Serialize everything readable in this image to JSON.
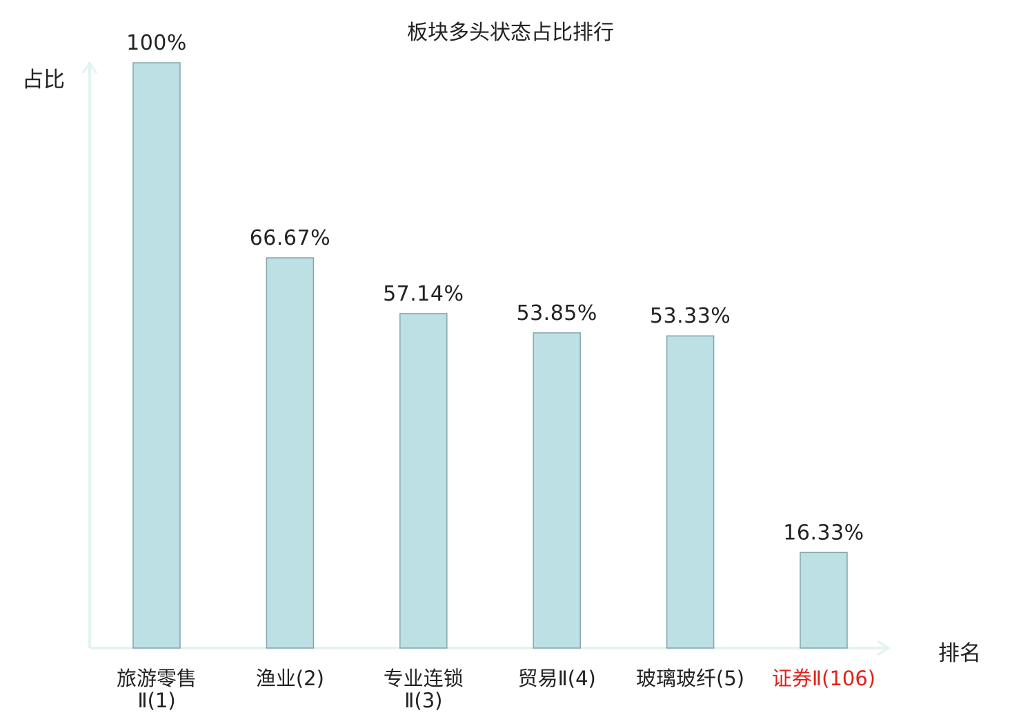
{
  "chart_data": {
    "type": "bar",
    "title": "板块多头状态占比排行",
    "ylabel": "占比",
    "xlabel": "排名",
    "ylim": [
      0,
      100
    ],
    "grid": false,
    "value_suffix": "%",
    "categories": [
      [
        "旅游零售",
        "Ⅱ(1)"
      ],
      [
        "渔业(2)"
      ],
      [
        "专业连锁",
        "Ⅱ(3)"
      ],
      [
        "贸易Ⅱ(4)"
      ],
      [
        "玻璃玻纤(5)"
      ],
      [
        "证券Ⅱ(106)"
      ]
    ],
    "values": [
      100,
      66.67,
      57.14,
      53.85,
      53.33,
      16.33
    ],
    "value_labels": [
      "100%",
      "66.67%",
      "57.14%",
      "53.85%",
      "53.33%",
      "16.33%"
    ],
    "highlight_index": 5
  },
  "colors": {
    "bar_fill": "#bce0e3",
    "bar_stroke": "#84a6aa",
    "axis": "#e2f3f1",
    "text": "#222222",
    "highlight": "#e0221c"
  }
}
